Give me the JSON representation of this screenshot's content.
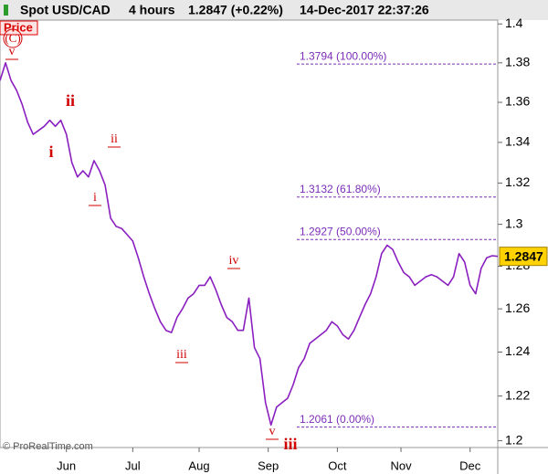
{
  "chart_data": {
    "type": "line",
    "title": "Spot USD/CAD",
    "timeframe": "4 hours",
    "quote": "1.2847 (+0.22%)",
    "timestamp": "14-Dec-2017 22:37:26",
    "panel_label": "Price",
    "credit": "© ProRealTime.com",
    "log_scale": true,
    "color": "#8a1fc0",
    "values": [
      1.371,
      1.38,
      1.371,
      1.366,
      1.359,
      1.35,
      1.344,
      1.346,
      1.348,
      1.351,
      1.348,
      1.351,
      1.344,
      1.33,
      1.323,
      1.326,
      1.323,
      1.331,
      1.326,
      1.319,
      1.303,
      1.299,
      1.298,
      1.295,
      1.292,
      1.284,
      1.275,
      1.267,
      1.26,
      1.254,
      1.25,
      1.249,
      1.256,
      1.26,
      1.265,
      1.267,
      1.271,
      1.271,
      1.275,
      1.269,
      1.262,
      1.256,
      1.254,
      1.25,
      1.25,
      1.265,
      1.242,
      1.237,
      1.217,
      1.207,
      1.215,
      1.217,
      1.219,
      1.225,
      1.233,
      1.237,
      1.244,
      1.246,
      1.248,
      1.25,
      1.254,
      1.252,
      1.248,
      1.246,
      1.25,
      1.256,
      1.262,
      1.267,
      1.275,
      1.286,
      1.29,
      1.288,
      1.282,
      1.277,
      1.275,
      1.271,
      1.273,
      1.275,
      1.276,
      1.275,
      1.273,
      1.271,
      1.275,
      1.286,
      1.282,
      1.271,
      1.267,
      1.279,
      1.284,
      1.285,
      1.2847
    ],
    "last_price": 1.2847,
    "ylim": [
      1.197,
      1.402
    ],
    "yticks": [
      1.2,
      1.22,
      1.24,
      1.26,
      1.28,
      1.3,
      1.32,
      1.34,
      1.36,
      1.38,
      1.4
    ],
    "xticks": [
      {
        "value": 12,
        "label": "Jun"
      },
      {
        "value": 24,
        "label": "Jul"
      },
      {
        "value": 36,
        "label": "Aug"
      },
      {
        "value": 48.5,
        "label": "Sep"
      },
      {
        "value": 61,
        "label": "Oct"
      },
      {
        "value": 72.5,
        "label": "Nov"
      },
      {
        "value": 85,
        "label": "Dec"
      }
    ],
    "fib_levels": [
      {
        "value": 1.3794,
        "label": "1.3794 (100.00%)"
      },
      {
        "value": 1.3132,
        "label": "1.3132 (61.80%)"
      },
      {
        "value": 1.2927,
        "label": "1.2927 (50.00%)"
      },
      {
        "value": 1.2061,
        "label": "1.2061 (0.00%)"
      }
    ],
    "annotations": [
      "(C)",
      "v",
      "ii",
      "i",
      "ii",
      "i",
      "iv",
      "iii",
      "v",
      "iii"
    ]
  }
}
